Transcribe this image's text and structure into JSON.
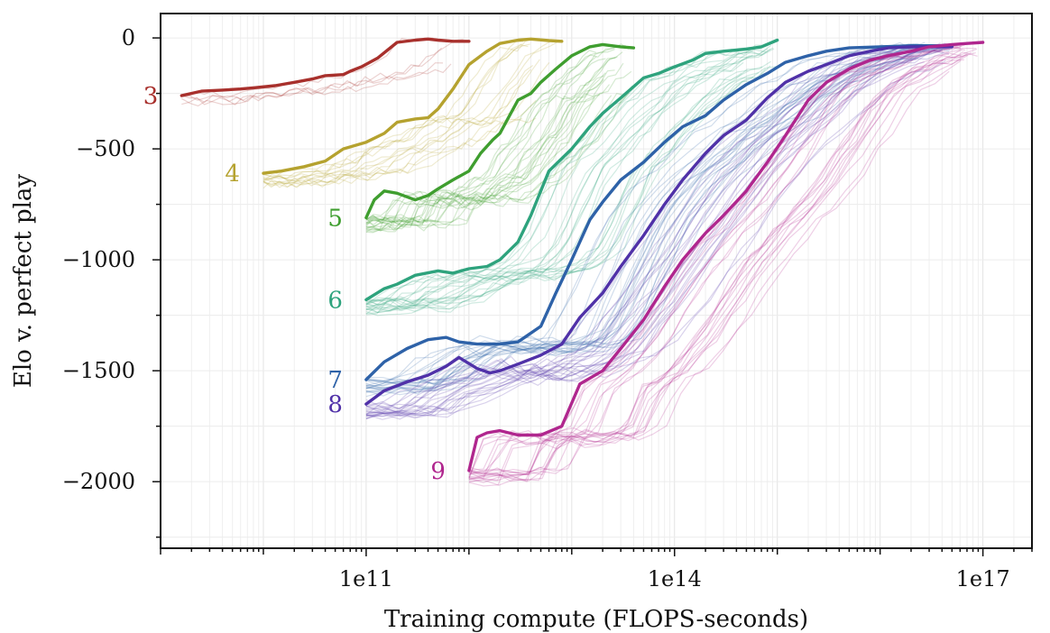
{
  "chart_data": {
    "type": "line",
    "xlabel": "Training compute (FLOPS-seconds)",
    "ylabel": "Elo v. perfect play",
    "x_scale": "log",
    "xlim": [
      1000000000.0,
      3e+17
    ],
    "ylim": [
      -2300,
      110
    ],
    "x_ticks": [
      {
        "value": 100000000000.0,
        "label": "1e11"
      },
      {
        "value": 100000000000000.0,
        "label": "1e14"
      },
      {
        "value": 1e+17,
        "label": "1e17"
      }
    ],
    "y_ticks": [
      {
        "value": 0,
        "label": "0"
      },
      {
        "value": -500,
        "label": "−500"
      },
      {
        "value": -1000,
        "label": "−1000"
      },
      {
        "value": -1500,
        "label": "−1500"
      },
      {
        "value": -2000,
        "label": "−2000"
      }
    ],
    "grid": true,
    "series": [
      {
        "name": "3",
        "color": "#a8302c",
        "x": [
          1600000000.0,
          2500000000.0,
          4000000000.0,
          6000000000.0,
          8000000000.0,
          13000000000.0,
          20000000000.0,
          30000000000.0,
          40000000000.0,
          60000000000.0,
          70000000000.0,
          90000000000.0,
          130000000000.0,
          200000000000.0,
          300000000000.0,
          400000000000.0,
          500000000000.0,
          700000000000.0,
          1000000000000.0
        ],
        "y": [
          -260,
          -240,
          -235,
          -230,
          -225,
          -215,
          -200,
          -185,
          -170,
          -165,
          -150,
          -130,
          -90,
          -20,
          -10,
          -5,
          -10,
          -15,
          -15
        ]
      },
      {
        "name": "4",
        "color": "#b5a22f",
        "x": [
          10000000000.0,
          15000000000.0,
          25000000000.0,
          40000000000.0,
          60000000000.0,
          100000000000.0,
          150000000000.0,
          200000000000.0,
          300000000000.0,
          400000000000.0,
          500000000000.0,
          700000000000.0,
          1000000000000.0,
          1500000000000.0,
          2000000000000.0,
          3000000000000.0,
          4000000000000.0,
          6000000000000.0,
          8000000000000.0
        ],
        "y": [
          -610,
          -600,
          -580,
          -555,
          -500,
          -470,
          -430,
          -380,
          -365,
          -360,
          -320,
          -230,
          -120,
          -60,
          -25,
          -10,
          -5,
          -12,
          -15
        ]
      },
      {
        "name": "5",
        "color": "#3f9e2f",
        "x": [
          100000000000.0,
          120000000000.0,
          150000000000.0,
          200000000000.0,
          300000000000.0,
          400000000000.0,
          500000000000.0,
          700000000000.0,
          1000000000000.0,
          1300000000000.0,
          1700000000000.0,
          2000000000000.0,
          3000000000000.0,
          4000000000000.0,
          5000000000000.0,
          7000000000000.0,
          10000000000000.0,
          15000000000000.0,
          20000000000000.0,
          30000000000000.0,
          40000000000000.0
        ],
        "y": [
          -810,
          -730,
          -690,
          -700,
          -730,
          -710,
          -680,
          -640,
          -600,
          -520,
          -460,
          -430,
          -280,
          -250,
          -200,
          -140,
          -80,
          -40,
          -30,
          -40,
          -45
        ]
      },
      {
        "name": "6",
        "color": "#2ea37d",
        "x": [
          100000000000.0,
          150000000000.0,
          200000000000.0,
          300000000000.0,
          500000000000.0,
          700000000000.0,
          1000000000000.0,
          1500000000000.0,
          2000000000000.0,
          3000000000000.0,
          4000000000000.0,
          6000000000000.0,
          10000000000000.0,
          15000000000000.0,
          20000000000000.0,
          30000000000000.0,
          50000000000000.0,
          70000000000000.0,
          100000000000000.0,
          150000000000000.0,
          200000000000000.0,
          300000000000000.0,
          500000000000000.0,
          700000000000000.0,
          1000000000000000.0
        ],
        "y": [
          -1180,
          -1130,
          -1110,
          -1070,
          -1050,
          -1060,
          -1040,
          -1030,
          -1000,
          -920,
          -800,
          -600,
          -500,
          -400,
          -340,
          -270,
          -180,
          -160,
          -130,
          -100,
          -70,
          -60,
          -50,
          -40,
          -10
        ]
      },
      {
        "name": "7",
        "color": "#2e62a8",
        "x": [
          100000000000.0,
          150000000000.0,
          250000000000.0,
          400000000000.0,
          600000000000.0,
          800000000000.0,
          1200000000000.0,
          2000000000000.0,
          3000000000000.0,
          5000000000000.0,
          7000000000000.0,
          10000000000000.0,
          15000000000000.0,
          20000000000000.0,
          30000000000000.0,
          50000000000000.0,
          80000000000000.0,
          120000000000000.0,
          200000000000000.0,
          300000000000000.0,
          500000000000000.0,
          800000000000000.0,
          1200000000000000.0,
          2000000000000000.0,
          3000000000000000.0,
          5000000000000000.0,
          1e+16,
          2e+16,
          3e+16,
          5e+16
        ],
        "y": [
          -1540,
          -1460,
          -1400,
          -1360,
          -1350,
          -1370,
          -1380,
          -1380,
          -1370,
          -1300,
          -1150,
          -1000,
          -820,
          -740,
          -640,
          -560,
          -470,
          -400,
          -350,
          -280,
          -210,
          -160,
          -110,
          -80,
          -60,
          -45,
          -40,
          -35,
          -35,
          -35
        ]
      },
      {
        "name": "8",
        "color": "#5031a8",
        "x": [
          100000000000.0,
          150000000000.0,
          250000000000.0,
          400000000000.0,
          600000000000.0,
          800000000000.0,
          1200000000000.0,
          1600000000000.0,
          2000000000000.0,
          3000000000000.0,
          5000000000000.0,
          8000000000000.0,
          12000000000000.0,
          20000000000000.0,
          30000000000000.0,
          50000000000000.0,
          80000000000000.0,
          120000000000000.0,
          200000000000000.0,
          300000000000000.0,
          500000000000000.0,
          800000000000000.0,
          1200000000000000.0,
          2000000000000000.0,
          3000000000000000.0,
          5000000000000000.0,
          8000000000000000.0,
          1.2e+16,
          2e+16,
          3e+16,
          5e+16
        ],
        "y": [
          -1650,
          -1590,
          -1550,
          -1520,
          -1480,
          -1440,
          -1490,
          -1510,
          -1500,
          -1470,
          -1430,
          -1380,
          -1260,
          -1150,
          -1030,
          -890,
          -750,
          -640,
          -520,
          -440,
          -370,
          -270,
          -200,
          -150,
          -120,
          -80,
          -60,
          -45,
          -40,
          -40,
          -40
        ]
      },
      {
        "name": "9",
        "color": "#b0268e",
        "x": [
          1000000000000.0,
          1200000000000.0,
          1500000000000.0,
          2000000000000.0,
          3000000000000.0,
          5000000000000.0,
          8000000000000.0,
          12000000000000.0,
          20000000000000.0,
          30000000000000.0,
          50000000000000.0,
          80000000000000.0,
          120000000000000.0,
          200000000000000.0,
          300000000000000.0,
          500000000000000.0,
          800000000000000.0,
          1200000000000000.0,
          2000000000000000.0,
          3000000000000000.0,
          5000000000000000.0,
          8000000000000000.0,
          1.2e+16,
          2e+16,
          3e+16,
          5e+16,
          7e+16,
          1e+17
        ],
        "y": [
          -1950,
          -1800,
          -1780,
          -1770,
          -1790,
          -1790,
          -1750,
          -1560,
          -1500,
          -1400,
          -1270,
          -1120,
          -1000,
          -880,
          -800,
          -690,
          -560,
          -440,
          -280,
          -200,
          -140,
          -100,
          -80,
          -60,
          -40,
          -30,
          -25,
          -20
        ]
      }
    ]
  }
}
